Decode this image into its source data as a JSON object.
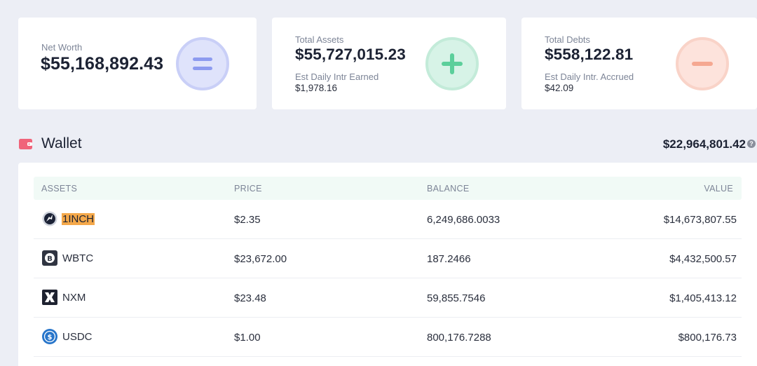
{
  "summary": {
    "net_worth": {
      "label": "Net Worth",
      "value": "$55,168,892.43"
    },
    "total_assets": {
      "label": "Total Assets",
      "value": "$55,727,015.23",
      "sub_label": "Est Daily Intr Earned",
      "sub_value": "$1,978.16"
    },
    "total_debts": {
      "label": "Total Debts",
      "value": "$558,122.81",
      "sub_label": "Est Daily Intr. Accrued",
      "sub_value": "$42.09"
    }
  },
  "wallet": {
    "title": "Wallet",
    "total": "$22,964,801.42",
    "help_glyph": "?",
    "columns": {
      "assets": "ASSETS",
      "price": "PRICE",
      "balance": "BALANCE",
      "value": "VALUE"
    },
    "rows": [
      {
        "asset": "1INCH",
        "icon": "1inch-icon",
        "price": "$2.35",
        "balance": "6,249,686.0033",
        "value": "$14,673,807.55"
      },
      {
        "asset": "WBTC",
        "icon": "wbtc-icon",
        "price": "$23,672.00",
        "balance": "187.2466",
        "value": "$4,432,500.57"
      },
      {
        "asset": "NXM",
        "icon": "nxm-icon",
        "price": "$23.48",
        "balance": "59,855.7546",
        "value": "$1,405,413.12"
      },
      {
        "asset": "USDC",
        "icon": "usdc-icon",
        "price": "$1.00",
        "balance": "800,176.7288",
        "value": "$800,176.73"
      }
    ]
  },
  "colors": {
    "page_bg": "#eceef5",
    "equals_accent": "#8d9bf0",
    "plus_accent": "#5ccf9b",
    "minus_accent": "#f5a891",
    "wallet_icon": "#f0647a",
    "highlight": "#f4a84a",
    "table_header_bg": "#f1faf6"
  }
}
